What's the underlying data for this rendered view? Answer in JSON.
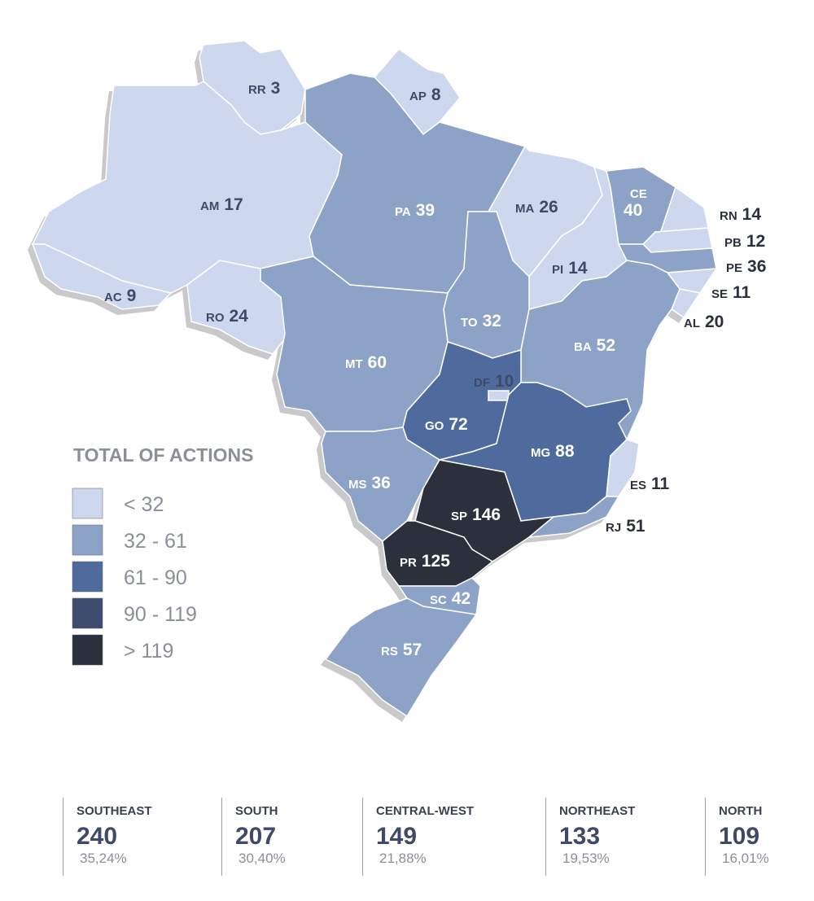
{
  "map": {
    "legend": {
      "title": "TOTAL OF ACTIONS",
      "bins": [
        {
          "label": "< 32",
          "max": 32,
          "color": "#cdd8ef",
          "label_color": "#3e4a68"
        },
        {
          "label": "32 - 61",
          "min": 32,
          "max": 61,
          "color": "#8ca2c7",
          "label_color": "#ffffff"
        },
        {
          "label": "61 - 90",
          "min": 61,
          "max": 90,
          "color": "#4f6a9c",
          "label_color": "#ffffff"
        },
        {
          "label": "90 - 119",
          "min": 90,
          "max": 119,
          "color": "#3d4d70",
          "label_color": "#ffffff"
        },
        {
          "label": "> 119",
          "min": 119,
          "color": "#2b303c",
          "label_color": "#ffffff"
        }
      ]
    },
    "states": [
      {
        "code": "RR",
        "value": 3
      },
      {
        "code": "AP",
        "value": 8
      },
      {
        "code": "AM",
        "value": 17
      },
      {
        "code": "PA",
        "value": 39
      },
      {
        "code": "AC",
        "value": 9
      },
      {
        "code": "RO",
        "value": 24
      },
      {
        "code": "MA",
        "value": 26
      },
      {
        "code": "PI",
        "value": 14
      },
      {
        "code": "CE",
        "value": 40
      },
      {
        "code": "RN",
        "value": 14
      },
      {
        "code": "PB",
        "value": 12
      },
      {
        "code": "PE",
        "value": 36
      },
      {
        "code": "AL",
        "value": 20
      },
      {
        "code": "SE",
        "value": 11
      },
      {
        "code": "TO",
        "value": 32
      },
      {
        "code": "BA",
        "value": 52
      },
      {
        "code": "MT",
        "value": 60
      },
      {
        "code": "GO",
        "value": 72
      },
      {
        "code": "DF",
        "value": 10
      },
      {
        "code": "MG",
        "value": 88
      },
      {
        "code": "ES",
        "value": 11
      },
      {
        "code": "MS",
        "value": 36
      },
      {
        "code": "SP",
        "value": 146
      },
      {
        "code": "RJ",
        "value": 51
      },
      {
        "code": "PR",
        "value": 125
      },
      {
        "code": "SC",
        "value": 42
      },
      {
        "code": "RS",
        "value": 57
      }
    ]
  },
  "regions": [
    {
      "name": "SOUTHEAST",
      "total": 240,
      "share": "35,24%"
    },
    {
      "name": "SOUTH",
      "total": 207,
      "share": "30,40%"
    },
    {
      "name": "CENTRAL-WEST",
      "total": 149,
      "share": "21,88%"
    },
    {
      "name": "NORTHEAST",
      "total": 133,
      "share": "19,53%"
    },
    {
      "name": "NORTH",
      "total": 109,
      "share": "16,01%"
    }
  ]
}
